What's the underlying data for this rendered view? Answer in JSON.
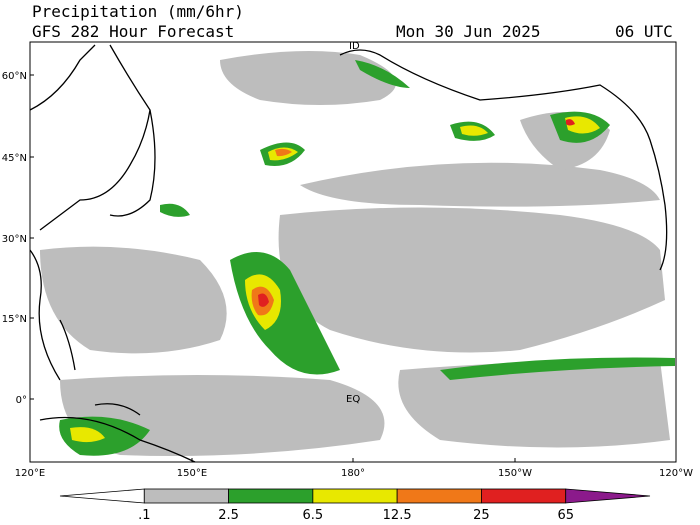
{
  "header": {
    "title": "Precipitation (mm/6hr)",
    "model": "GFS 282 Hour Forecast",
    "date": "Mon 30 Jun 2025",
    "time": "06 UTC"
  },
  "map": {
    "labels": [
      "ID",
      "EQ"
    ],
    "latitudes": [
      "60°N",
      "45°N",
      "30°N",
      "15°N",
      "0°"
    ],
    "longitudes": [
      "120°E",
      "150°E",
      "180°",
      "150°W",
      "120°W"
    ]
  },
  "colorbar": {
    "labels": [
      ".1",
      "2.5",
      "6.5",
      "12.5",
      "25",
      "65"
    ],
    "colors": [
      "#ffffff",
      "#bdbdbd",
      "#2ca02c",
      "#e8e800",
      "#f07818",
      "#e02020",
      "#8b1a8b"
    ]
  }
}
